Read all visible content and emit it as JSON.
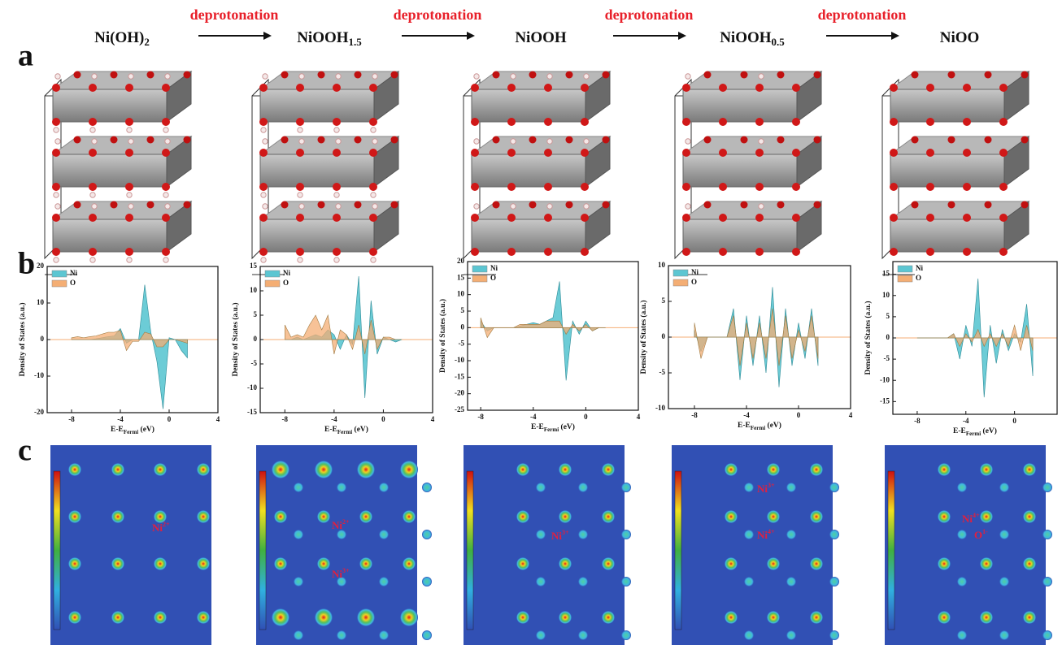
{
  "panel_labels": [
    "a",
    "b",
    "c"
  ],
  "compounds": [
    {
      "main": "Ni(OH)",
      "sub": "2"
    },
    {
      "main": "NiOOH",
      "sub": "1.5"
    },
    {
      "main": "NiOOH"
    },
    {
      "main": "NiOOH",
      "sub": "0.5"
    },
    {
      "main": "NiOO"
    }
  ],
  "arrow_labels": [
    "deprotonation",
    "deprotonation",
    "deprotonation",
    "deprotonation"
  ],
  "chart_data": [
    {
      "type": "area",
      "y_label": "Density of States (a.u.)",
      "x_label": {
        "main": "E-E",
        "sub": "Fermi",
        "tail": " (eV)"
      },
      "x": [
        -8,
        -7.5,
        -7,
        -6.5,
        -6,
        -5.5,
        -5,
        -4.5,
        -4,
        -3.5,
        -3,
        -2.5,
        -2,
        -1.5,
        -1,
        -0.5,
        0,
        0.5,
        1,
        1.5
      ],
      "xlim": [
        -10,
        4
      ],
      "xticks": [
        -8,
        -4,
        0,
        4
      ],
      "ylim": [
        -20,
        20
      ],
      "yticks": [
        -20,
        -10,
        0,
        10,
        20
      ],
      "series": [
        {
          "name": "Ni",
          "color": "#5cc6d2",
          "values": [
            0,
            0,
            0,
            0,
            0.2,
            0.5,
            0.8,
            1,
            3,
            -1,
            0,
            0,
            15,
            2,
            -6,
            -19,
            0.5,
            0,
            -3,
            -5
          ]
        },
        {
          "name": "O",
          "color": "#f4ae74",
          "values": [
            0.5,
            0.8,
            0.5,
            0.8,
            1,
            1.5,
            2,
            2,
            2.5,
            -3,
            -0.5,
            -0.5,
            2,
            1.5,
            -2,
            -2,
            0,
            0,
            -0.5,
            -1
          ]
        }
      ]
    },
    {
      "type": "area",
      "y_label": "Density of States (a.u.)",
      "x_label": {
        "main": "E-E",
        "sub": "Fermi",
        "tail": " (eV)"
      },
      "x": [
        -8,
        -7.5,
        -7,
        -6.5,
        -6,
        -5.5,
        -5,
        -4.5,
        -4,
        -3.5,
        -3,
        -2.5,
        -2,
        -1.5,
        -1,
        -0.5,
        0,
        0.5,
        1,
        1.5
      ],
      "xlim": [
        -10,
        4
      ],
      "xticks": [
        -8,
        -4,
        0,
        4
      ],
      "ylim": [
        -15,
        15
      ],
      "yticks": [
        -15,
        -10,
        -5,
        0,
        5,
        10,
        15
      ],
      "series": [
        {
          "name": "Ni",
          "color": "#5cc6d2",
          "values": [
            0,
            0,
            0.5,
            0,
            0.5,
            1,
            0.5,
            2,
            1,
            -2,
            1,
            -1,
            13,
            -12,
            8,
            -3,
            0.5,
            0,
            -0.5,
            0
          ]
        },
        {
          "name": "O",
          "color": "#f4ae74",
          "values": [
            3,
            0.5,
            1,
            0.5,
            3,
            5,
            2,
            5,
            -3,
            2,
            1,
            -2,
            3,
            -3,
            4,
            -2,
            0.5,
            0.5,
            0,
            0
          ]
        }
      ]
    },
    {
      "type": "area",
      "y_label": "Density of States (a.u.)",
      "x_label": {
        "main": "E-E",
        "sub": "Fermi",
        "tail": " (eV)"
      },
      "x": [
        -8,
        -7.5,
        -7,
        -6.5,
        -6,
        -5.5,
        -5,
        -4.5,
        -4,
        -3.5,
        -3,
        -2.5,
        -2,
        -1.5,
        -1,
        -0.5,
        0,
        0.5,
        1,
        1.5
      ],
      "xlim": [
        -9,
        4
      ],
      "xticks": [
        -8,
        -4,
        0,
        4
      ],
      "ylim": [
        -25,
        20
      ],
      "yticks": [
        -25,
        -20,
        -15,
        -10,
        -5,
        0,
        5,
        10,
        15,
        20
      ],
      "series": [
        {
          "name": "Ni",
          "color": "#5cc6d2",
          "values": [
            2,
            -1,
            0,
            0,
            0,
            0,
            0.5,
            1,
            1.5,
            1,
            2,
            3,
            14,
            -16,
            2,
            -2,
            2,
            -1,
            0,
            0
          ]
        },
        {
          "name": "O",
          "color": "#f4ae74",
          "values": [
            3,
            -3,
            0,
            0,
            0,
            0,
            1,
            1,
            1,
            1,
            2,
            2,
            2,
            -2,
            1,
            -1,
            1,
            -1,
            0,
            0
          ]
        }
      ]
    },
    {
      "type": "area",
      "y_label": "Density of States (a.u.)",
      "x_label": {
        "main": "E-E",
        "sub": "Fermi",
        "tail": " (eV)"
      },
      "x": [
        -8,
        -7.5,
        -7,
        -6.5,
        -6,
        -5.5,
        -5,
        -4.5,
        -4,
        -3.5,
        -3,
        -2.5,
        -2,
        -1.5,
        -1,
        -0.5,
        0,
        0.5,
        1,
        1.5
      ],
      "xlim": [
        -10,
        4
      ],
      "xticks": [
        -8,
        -4,
        0,
        4
      ],
      "ylim": [
        -10,
        10
      ],
      "yticks": [
        -10,
        -5,
        0,
        5,
        10
      ],
      "series": [
        {
          "name": "Ni",
          "color": "#5cc6d2",
          "values": [
            1,
            -2,
            0,
            0,
            0,
            0,
            4,
            -6,
            3,
            -4,
            3,
            -5,
            7,
            -7,
            4,
            -4,
            2,
            -3,
            4,
            -4
          ]
        },
        {
          "name": "O",
          "color": "#f4ae74",
          "values": [
            2,
            -3,
            0,
            0,
            0,
            0,
            3,
            -4,
            2,
            -3,
            2,
            -3,
            4,
            -4,
            3,
            -3,
            1,
            -2,
            3,
            -3
          ]
        }
      ]
    },
    {
      "type": "area",
      "y_label": "Density of States (a.u.)",
      "x_label": {
        "main": "E-E",
        "sub": "Fermi",
        "tail": " (eV)"
      },
      "x": [
        -8,
        -7.5,
        -7,
        -6.5,
        -6,
        -5.5,
        -5,
        -4.5,
        -4,
        -3.5,
        -3,
        -2.5,
        -2,
        -1.5,
        -1,
        -0.5,
        0,
        0.5,
        1,
        1.5
      ],
      "xlim": [
        -10,
        3.5
      ],
      "xticks": [
        -8,
        -4,
        0
      ],
      "ylim": [
        -18,
        18
      ],
      "yticks": [
        -15,
        -10,
        -5,
        0,
        5,
        10,
        15
      ],
      "series": [
        {
          "name": "Ni",
          "color": "#5cc6d2",
          "values": [
            0,
            0,
            0,
            0,
            0,
            0,
            1,
            -5,
            3,
            -2,
            14,
            -14,
            3,
            -6,
            2,
            -3,
            1,
            -1,
            8,
            -9
          ]
        },
        {
          "name": "O",
          "color": "#f4ae74",
          "values": [
            0,
            0,
            0,
            0,
            0,
            0,
            1,
            -2,
            1,
            -1,
            2,
            -2,
            1,
            -2,
            1,
            -2,
            3,
            -3,
            3,
            -3
          ]
        }
      ]
    }
  ],
  "maps": [
    {
      "labels": [
        {
          "main": "Ni",
          "sup": "2+"
        }
      ]
    },
    {
      "labels": [
        {
          "main": "Ni",
          "sup": "2+"
        },
        {
          "main": "Ni",
          "sup": "3+"
        }
      ]
    },
    {
      "labels": [
        {
          "main": "Ni",
          "sup": "3+"
        }
      ]
    },
    {
      "labels": [
        {
          "main": "Ni",
          "sup": "3+"
        },
        {
          "main": "Ni",
          "sup": "4+"
        }
      ]
    },
    {
      "labels": [
        {
          "main": "Ni",
          "sup": "4+"
        },
        {
          "main": "O",
          "sup": "1-"
        }
      ]
    }
  ]
}
